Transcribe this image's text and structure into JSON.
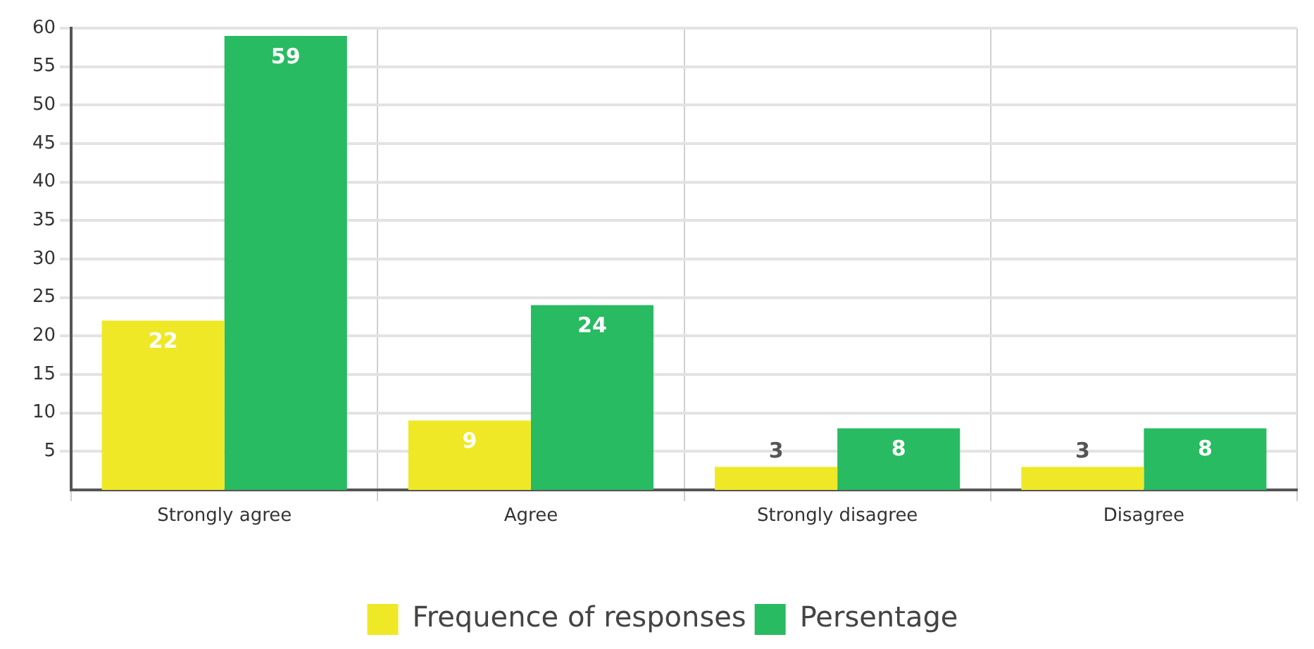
{
  "chart_data": {
    "type": "bar",
    "categories": [
      "Strongly agree",
      "Agree",
      "Strongly disagree",
      "Disagree"
    ],
    "series": [
      {
        "name": "Frequence of responses",
        "color": "#efe827",
        "values": [
          22,
          9,
          3,
          3
        ]
      },
      {
        "name": "Persentage",
        "color": "#28bb62",
        "values": [
          59,
          24,
          8,
          8
        ]
      }
    ],
    "ylim": [
      0,
      60
    ],
    "yticks": [
      5,
      10,
      15,
      20,
      25,
      30,
      35,
      40,
      45,
      50,
      55,
      60
    ],
    "grid": true,
    "legend": "bottom",
    "data_labels": true
  }
}
